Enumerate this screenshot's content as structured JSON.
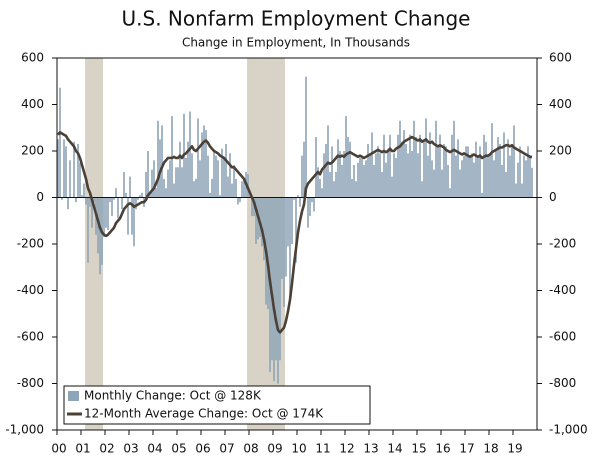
{
  "chart_data": {
    "type": "bar-line",
    "title": "U.S. Nonfarm Employment Change",
    "subtitle": "Change in Employment, In Thousands",
    "xlim": [
      2000,
      2020
    ],
    "xticks": [
      {
        "value": 2000,
        "label": "00"
      },
      {
        "value": 2001,
        "label": "01"
      },
      {
        "value": 2002,
        "label": "02"
      },
      {
        "value": 2003,
        "label": "03"
      },
      {
        "value": 2004,
        "label": "04"
      },
      {
        "value": 2005,
        "label": "05"
      },
      {
        "value": 2006,
        "label": "06"
      },
      {
        "value": 2007,
        "label": "07"
      },
      {
        "value": 2008,
        "label": "08"
      },
      {
        "value": 2009,
        "label": "09"
      },
      {
        "value": 2010,
        "label": "10"
      },
      {
        "value": 2011,
        "label": "11"
      },
      {
        "value": 2012,
        "label": "12"
      },
      {
        "value": 2013,
        "label": "13"
      },
      {
        "value": 2014,
        "label": "14"
      },
      {
        "value": 2015,
        "label": "15"
      },
      {
        "value": 2016,
        "label": "16"
      },
      {
        "value": 2017,
        "label": "17"
      },
      {
        "value": 2018,
        "label": "18"
      },
      {
        "value": 2019,
        "label": "19"
      }
    ],
    "ylim": [
      -1000,
      600
    ],
    "yticks": [
      {
        "value": -1000,
        "label": "-1,000"
      },
      -800,
      -600,
      -400,
      -200,
      0,
      200,
      400,
      600
    ],
    "y2lim": [
      -1000,
      600
    ],
    "y2ticks": [
      {
        "value": -1000,
        "label": "-1,000"
      },
      -800,
      -600,
      -400,
      -200,
      0,
      200,
      400,
      600
    ],
    "recessions": [
      {
        "start": 2001.17,
        "end": 2001.92
      },
      {
        "start": 2007.92,
        "end": 2009.5
      }
    ],
    "recession_color": "#d8d3c6",
    "legend": "lower-left",
    "series": [
      {
        "name": "Monthly Change: Oct @ 128K",
        "type": "bar",
        "color": "#8ea4b8",
        "values": [
          250,
          472,
          -10,
          250,
          220,
          -50,
          160,
          0,
          240,
          -20,
          230,
          150,
          10,
          60,
          -30,
          -280,
          -40,
          -130,
          -20,
          -160,
          -240,
          -330,
          -290,
          -170,
          -130,
          -140,
          -20,
          -80,
          -10,
          40,
          -90,
          0,
          -50,
          110,
          20,
          -160,
          90,
          -160,
          -210,
          -50,
          -10,
          10,
          20,
          -40,
          110,
          200,
          20,
          120,
          160,
          40,
          330,
          250,
          310,
          80,
          40,
          120,
          160,
          350,
          60,
          130,
          130,
          240,
          130,
          360,
          170,
          240,
          370,
          190,
          70,
          80,
          340,
          160,
          280,
          310,
          290,
          180,
          20,
          80,
          200,
          180,
          160,
          10,
          210,
          170,
          230,
          90,
          190,
          60,
          140,
          80,
          -30,
          -20,
          70,
          80,
          110,
          100,
          20,
          -80,
          -80,
          -200,
          -180,
          -170,
          -210,
          -270,
          -460,
          -480,
          -750,
          -700,
          -790,
          -700,
          -800,
          -700,
          -350,
          -470,
          -340,
          -210,
          -450,
          -200,
          -10,
          -280,
          10,
          -40,
          180,
          240,
          520,
          -130,
          -80,
          -20,
          -60,
          260,
          130,
          80,
          40,
          190,
          230,
          310,
          110,
          220,
          70,
          110,
          250,
          200,
          140,
          200,
          350,
          260,
          240,
          80,
          140,
          70,
          150,
          170,
          170,
          140,
          160,
          230,
          190,
          280,
          140,
          190,
          220,
          190,
          110,
          270,
          150,
          210,
          270,
          90,
          190,
          170,
          270,
          330,
          240,
          290,
          230,
          190,
          270,
          200,
          330,
          260,
          190,
          270,
          70,
          250,
          340,
          180,
          280,
          160,
          120,
          330,
          220,
          270,
          120,
          230,
          220,
          140,
          40,
          270,
          330,
          180,
          250,
          120,
          160,
          180,
          220,
          220,
          170,
          190,
          150,
          240,
          180,
          220,
          20,
          270,
          240,
          180,
          180,
          320,
          160,
          200,
          260,
          230,
          140,
          280,
          110,
          250,
          180,
          230,
          310,
          60,
          150,
          220,
          60,
          180,
          160,
          220,
          180,
          128
        ]
      },
      {
        "name": "12-Month Average Change: Oct @ 174K",
        "type": "line",
        "color": "#4b4036",
        "values": [
          270,
          280,
          275,
          270,
          265,
          250,
          240,
          230,
          220,
          200,
          190,
          170,
          140,
          110,
          80,
          40,
          20,
          -10,
          -40,
          -70,
          -100,
          -130,
          -150,
          -160,
          -165,
          -160,
          -150,
          -140,
          -130,
          -110,
          -100,
          -90,
          -70,
          -50,
          -40,
          -30,
          -25,
          -30,
          -40,
          -35,
          -30,
          -25,
          -20,
          -20,
          -10,
          10,
          20,
          30,
          40,
          60,
          80,
          110,
          130,
          150,
          160,
          170,
          170,
          170,
          175,
          170,
          170,
          180,
          170,
          185,
          190,
          200,
          210,
          220,
          205,
          200,
          210,
          220,
          230,
          240,
          245,
          235,
          220,
          210,
          200,
          195,
          190,
          180,
          175,
          170,
          160,
          150,
          140,
          130,
          130,
          120,
          110,
          100,
          90,
          80,
          60,
          40,
          20,
          0,
          -20,
          -50,
          -80,
          -110,
          -140,
          -180,
          -230,
          -290,
          -360,
          -420,
          -480,
          -530,
          -570,
          -580,
          -570,
          -560,
          -530,
          -490,
          -440,
          -370,
          -290,
          -220,
          -150,
          -100,
          -60,
          -30,
          40,
          60,
          70,
          80,
          90,
          100,
          110,
          100,
          120,
          130,
          140,
          150,
          145,
          150,
          160,
          170,
          180,
          175,
          180,
          175,
          185,
          190,
          195,
          190,
          185,
          180,
          175,
          180,
          175,
          170,
          175,
          180,
          185,
          190,
          195,
          200,
          205,
          200,
          195,
          200,
          195,
          200,
          210,
          200,
          200,
          210,
          215,
          220,
          230,
          240,
          245,
          250,
          255,
          260,
          255,
          250,
          245,
          250,
          240,
          245,
          250,
          240,
          235,
          240,
          230,
          225,
          220,
          225,
          220,
          215,
          205,
          200,
          195,
          200,
          205,
          200,
          195,
          190,
          185,
          190,
          185,
          180,
          175,
          180,
          185,
          180,
          175,
          180,
          170,
          175,
          180,
          180,
          185,
          195,
          200,
          205,
          210,
          215,
          215,
          220,
          225,
          225,
          220,
          225,
          215,
          210,
          205,
          200,
          195,
          190,
          185,
          180,
          175,
          174
        ]
      }
    ]
  }
}
